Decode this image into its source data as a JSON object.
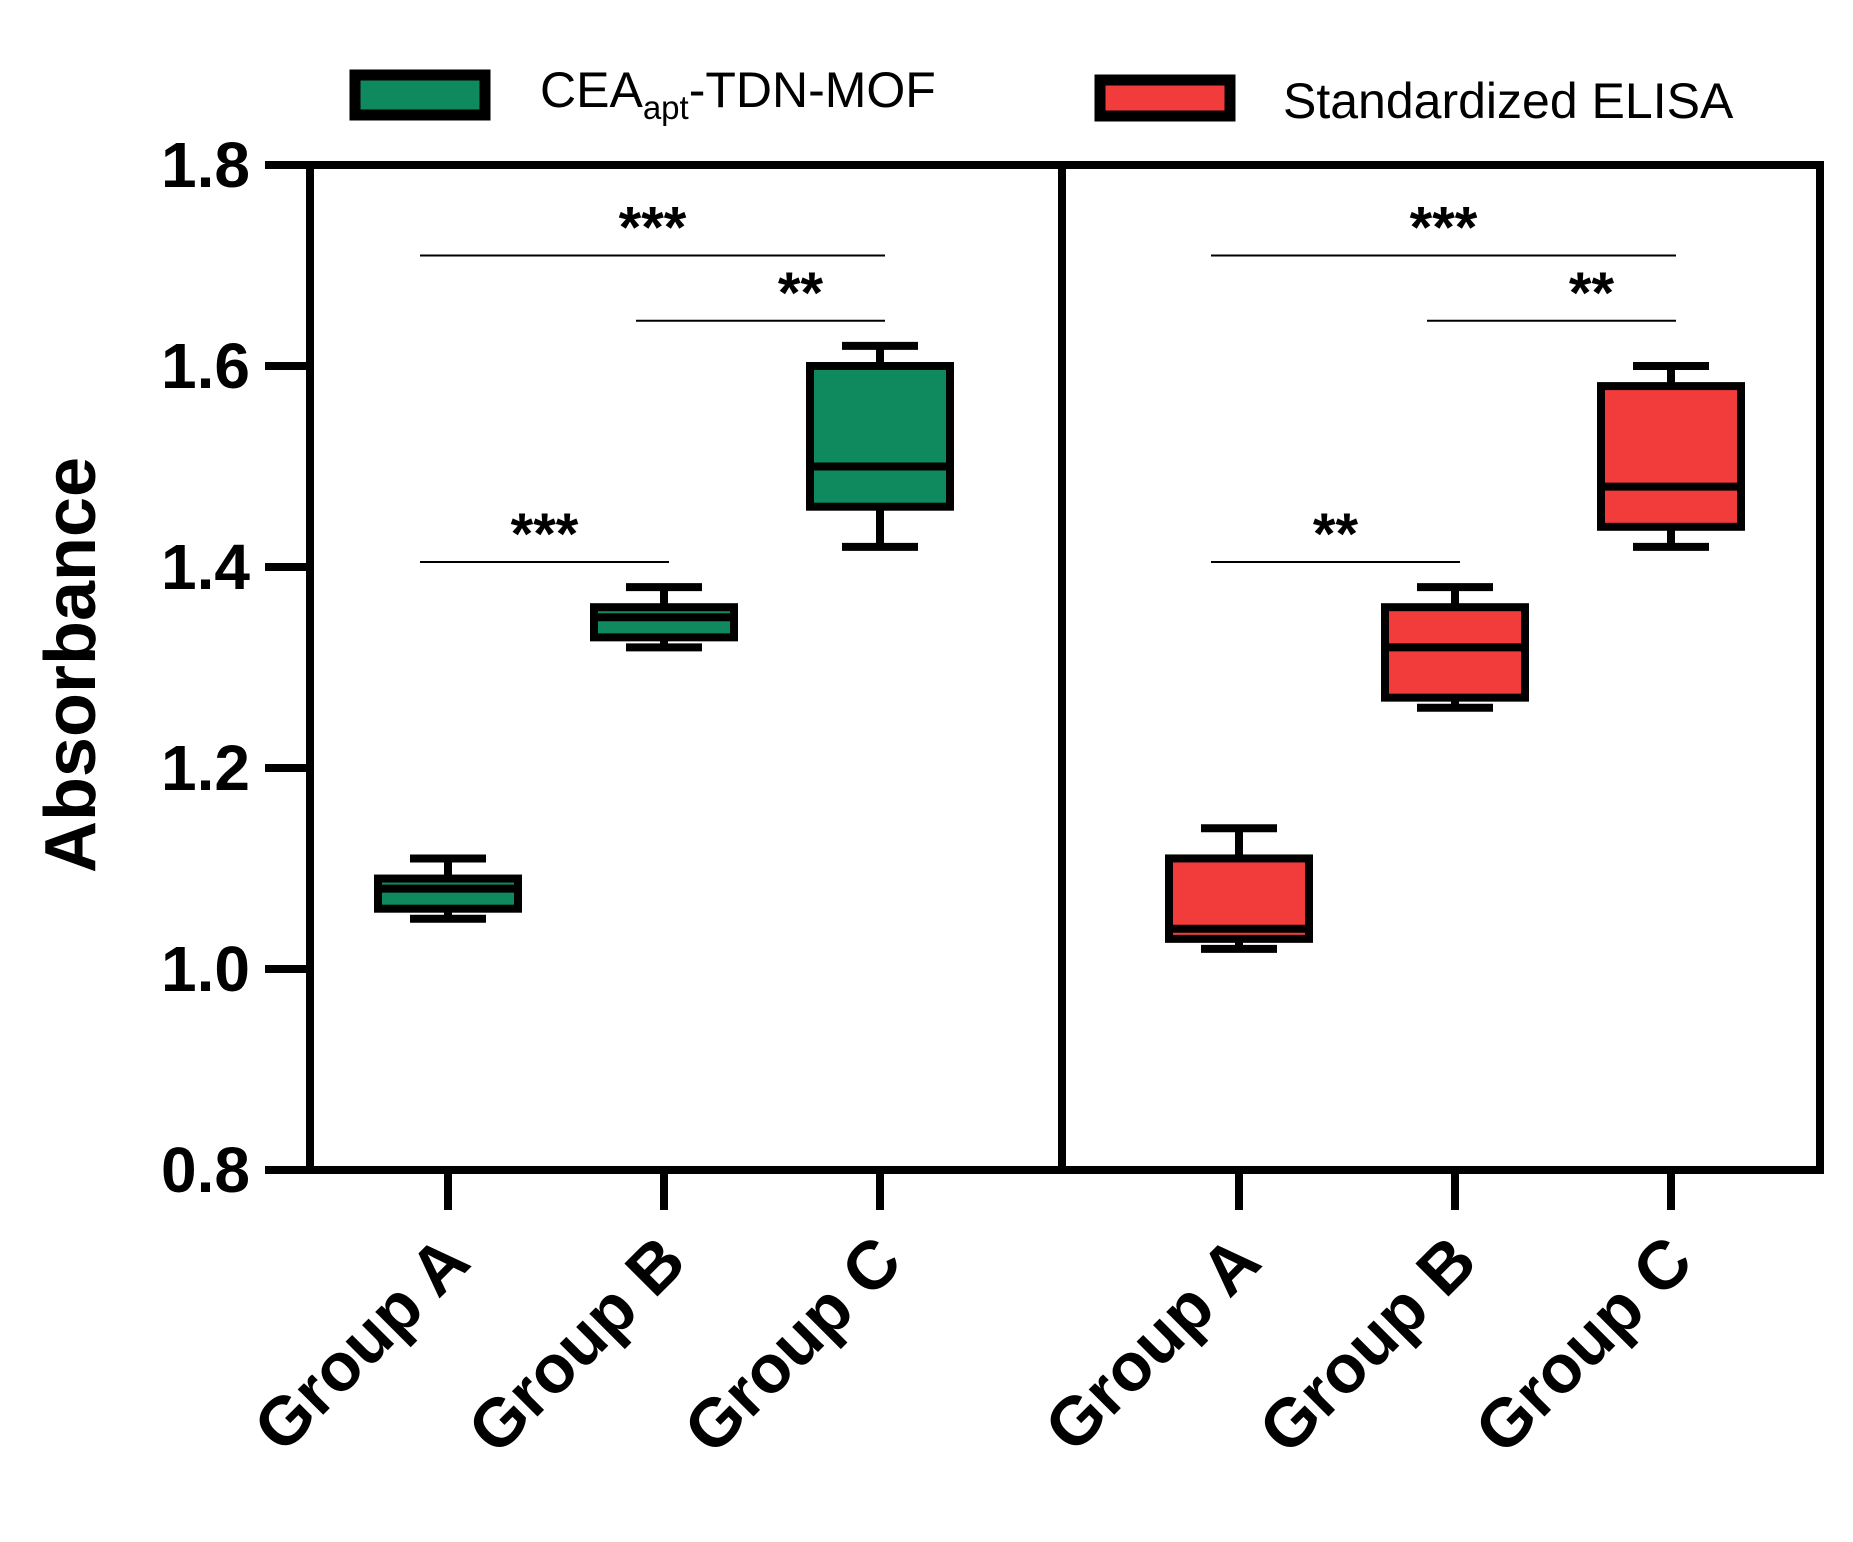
{
  "chart_data": {
    "type": "box",
    "ylabel": "Absorbance",
    "xlabel": "",
    "ylim": [
      0.8,
      1.8
    ],
    "yticks": [
      "0.8",
      "1.0",
      "1.2",
      "1.4",
      "1.6",
      "1.8"
    ],
    "legend": {
      "placement": "top",
      "items": [
        {
          "main": "CEA",
          "sub": "apt",
          "rest": "-TDN-MOF",
          "color": "#0f8a5f"
        },
        {
          "main": "Standardized ELISA",
          "sub": "",
          "rest": "",
          "color": "#f23c3c"
        }
      ]
    },
    "panels": [
      {
        "name": "CEA_apt-TDN-MOF",
        "color": "#0f8a5f",
        "categories": [
          "Group A",
          "Group B",
          "Group C"
        ],
        "boxes": [
          {
            "min": 1.05,
            "q1": 1.06,
            "median": 1.08,
            "q3": 1.09,
            "max": 1.11
          },
          {
            "min": 1.32,
            "q1": 1.33,
            "median": 1.35,
            "q3": 1.36,
            "max": 1.38
          },
          {
            "min": 1.42,
            "q1": 1.46,
            "median": 1.5,
            "q3": 1.6,
            "max": 1.62
          }
        ],
        "significance": [
          {
            "from": 0,
            "to": 2,
            "label": "***",
            "y": 1.71
          },
          {
            "from": 1,
            "to": 2,
            "label": "**",
            "y": 1.645
          },
          {
            "from": 0,
            "to": 1,
            "label": "***",
            "y": 1.405
          }
        ]
      },
      {
        "name": "Standardized ELISA",
        "color": "#f23c3c",
        "categories": [
          "Group A",
          "Group B",
          "Group C"
        ],
        "boxes": [
          {
            "min": 1.02,
            "q1": 1.03,
            "median": 1.04,
            "q3": 1.11,
            "max": 1.14
          },
          {
            "min": 1.26,
            "q1": 1.27,
            "median": 1.32,
            "q3": 1.36,
            "max": 1.38
          },
          {
            "min": 1.42,
            "q1": 1.44,
            "median": 1.48,
            "q3": 1.58,
            "max": 1.6
          }
        ],
        "significance": [
          {
            "from": 0,
            "to": 2,
            "label": "***",
            "y": 1.71
          },
          {
            "from": 1,
            "to": 2,
            "label": "**",
            "y": 1.645
          },
          {
            "from": 0,
            "to": 1,
            "label": "**",
            "y": 1.405
          }
        ]
      }
    ]
  }
}
